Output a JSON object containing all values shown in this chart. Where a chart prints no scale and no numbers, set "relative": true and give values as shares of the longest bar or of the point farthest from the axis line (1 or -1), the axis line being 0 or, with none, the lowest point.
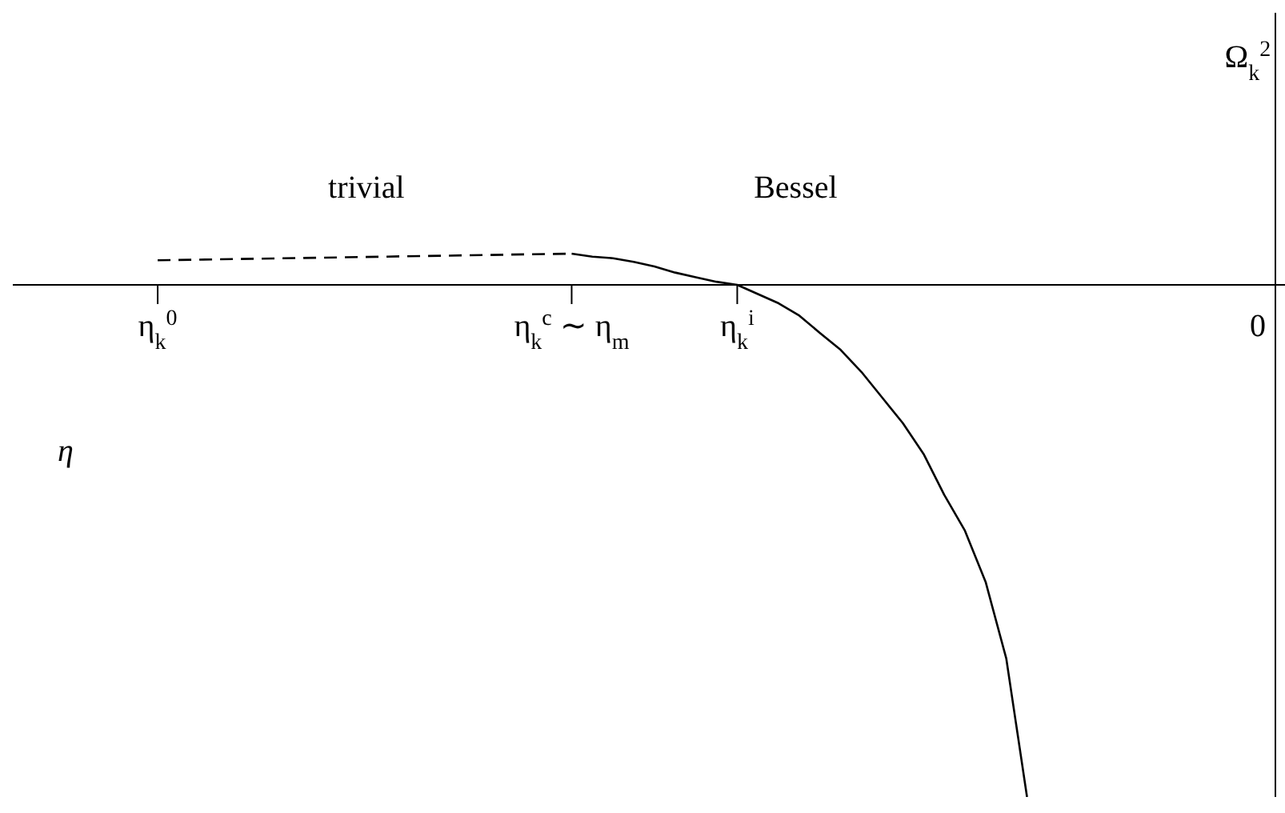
{
  "chart_data": {
    "type": "line",
    "relative": true,
    "xlabel": "η",
    "categories": [
      null,
      null,
      null,
      null,
      null,
      null,
      null,
      "η$_{k}$$^{0}$",
      null,
      null,
      null,
      null,
      null,
      null,
      null,
      null,
      null,
      null,
      null,
      null,
      null,
      null,
      null,
      null,
      null,
      null,
      null,
      "η$_{k}$$^{c}$ ∼ η$_{m}$",
      null,
      null,
      null,
      null,
      null,
      null,
      null,
      "η$_{k}$$^{i}$",
      null,
      null,
      null,
      null,
      null,
      null,
      null,
      null,
      null,
      null,
      null,
      null,
      null,
      null,
      null,
      null,
      null,
      null,
      null,
      null,
      null,
      null,
      null,
      null,
      null,
      "0"
    ],
    "marker": "none",
    "series": [
      {
        "color": "#000000",
        "line_style": "dashed",
        "values": [
          null,
          null,
          null,
          null,
          null,
          null,
          null,
          0.048,
          null,
          null,
          null,
          null,
          null,
          null,
          null,
          null,
          null,
          null,
          null,
          null,
          null,
          null,
          null,
          null,
          null,
          null,
          null,
          0.061,
          null,
          null,
          null,
          null,
          null,
          null,
          null,
          null,
          null,
          null,
          null,
          null,
          null,
          null,
          null,
          null,
          null,
          null,
          null,
          null,
          null,
          null,
          null,
          null,
          null,
          null,
          null,
          null,
          null,
          null,
          null,
          null,
          null,
          null
        ]
      },
      {
        "color": "#000000",
        "line_style": "solid",
        "values": [
          null,
          null,
          null,
          null,
          null,
          null,
          null,
          null,
          null,
          null,
          null,
          null,
          null,
          null,
          null,
          null,
          null,
          null,
          null,
          null,
          null,
          null,
          null,
          null,
          null,
          null,
          null,
          0.061,
          0.055,
          0.052,
          0.045,
          0.036,
          0.024,
          0.015,
          0.006,
          0,
          -0.018,
          -0.036,
          -0.06,
          -0.094,
          -0.127,
          -0.17,
          -0.22,
          -0.27,
          -0.33,
          -0.41,
          -0.48,
          -0.58,
          -0.73,
          -1,
          null,
          null,
          null,
          null,
          null,
          null,
          null,
          null,
          null,
          null,
          null,
          null
        ]
      }
    ],
    "annotations": [
      "trivial",
      "Bessel",
      "Ω$_{k}$$^{2}$"
    ]
  }
}
